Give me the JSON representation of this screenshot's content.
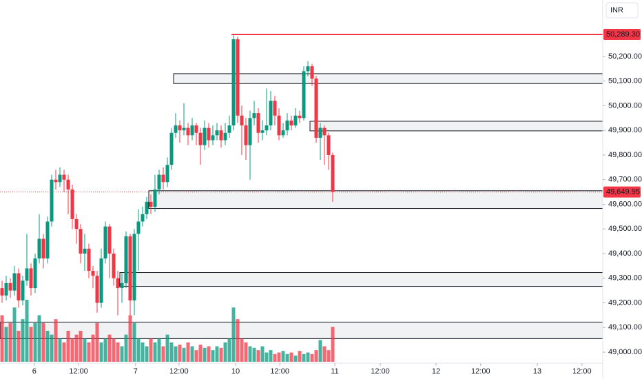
{
  "chart_data": {
    "type": "candlestick",
    "currency": "INR",
    "up_color": "#089981",
    "down_color": "#f23645",
    "ylim": [
      48947,
      50429
    ],
    "yticks": [
      {
        "value": 49000,
        "label": "49,000.00"
      },
      {
        "value": 49100,
        "label": "49,100.00"
      },
      {
        "value": 49200,
        "label": "49,200.00"
      },
      {
        "value": 49300,
        "label": "49,300.00"
      },
      {
        "value": 49400,
        "label": "49,400.00"
      },
      {
        "value": 49500,
        "label": "49,500.00"
      },
      {
        "value": 49600,
        "label": "49,600.00"
      },
      {
        "value": 49700,
        "label": "49,700.00"
      },
      {
        "value": 49800,
        "label": "49,800.00"
      },
      {
        "value": 49900,
        "label": "49,900.00"
      },
      {
        "value": 50000,
        "label": "50,000.00"
      },
      {
        "value": 50100,
        "label": "50,100.00"
      },
      {
        "value": 50200,
        "label": "50,200.00"
      }
    ],
    "xticks": [
      {
        "value": 7.8,
        "label": "6"
      },
      {
        "value": 18.5,
        "label": "12:00"
      },
      {
        "value": 32.3,
        "label": "7"
      },
      {
        "value": 42.8,
        "label": "12:00"
      },
      {
        "value": 56.5,
        "label": "10"
      },
      {
        "value": 67.2,
        "label": "12:00"
      },
      {
        "value": 80.5,
        "label": "11"
      },
      {
        "value": 91.5,
        "label": "12:00"
      },
      {
        "value": 105,
        "label": "12"
      },
      {
        "value": 115.8,
        "label": "12:00"
      },
      {
        "value": 129.5,
        "label": "13"
      },
      {
        "value": 140.3,
        "label": "12:00"
      }
    ],
    "open": [
      49260,
      49230,
      49280,
      49250,
      49320,
      49210,
      49290,
      49340,
      49260,
      49380,
      49460,
      49380,
      49530,
      49700,
      49690,
      49720,
      49700,
      49660,
      49540,
      49500,
      49400,
      49420,
      49330,
      49310,
      49200,
      49380,
      49510,
      49400,
      49300,
      49260,
      49280,
      49470,
      49210,
      49480,
      49530,
      49560,
      49610,
      49590,
      49660,
      49720,
      49690,
      49760,
      49890,
      49920,
      49900,
      49910,
      49880,
      49920,
      49890,
      49840,
      49910,
      49860,
      49880,
      49900,
      49860,
      49890,
      49920,
      50270,
      49960,
      49920,
      49840,
      49950,
      49970,
      49890,
      49900,
      49920,
      50020,
      49960,
      49880,
      49900,
      49940,
      49920,
      49960,
      49950,
      50140,
      50160,
      50110,
      49870,
      49910,
      49880,
      49800
    ],
    "high": [
      49290,
      49310,
      49300,
      49350,
      49340,
      49310,
      49480,
      49360,
      49400,
      49560,
      49480,
      49550,
      49720,
      49740,
      49750,
      49740,
      49720,
      49680,
      49560,
      49520,
      49480,
      49440,
      49350,
      49330,
      49420,
      49530,
      49520,
      49420,
      49330,
      49320,
      49490,
      49480,
      49500,
      49580,
      49590,
      49630,
      49640,
      49720,
      49740,
      49750,
      49790,
      49910,
      49970,
      49940,
      50010,
      49930,
      49950,
      49930,
      49910,
      49940,
      49930,
      49920,
      49930,
      49920,
      49930,
      49960,
      50289.3,
      50280,
      50000,
      49950,
      49980,
      50020,
      49990,
      49940,
      50070,
      50060,
      50040,
      49990,
      49930,
      49970,
      49960,
      49990,
      49980,
      50160,
      50180,
      50170,
      50120,
      49930,
      49920,
      49890,
      49810
    ],
    "low": [
      49200,
      49210,
      49220,
      49230,
      49180,
      49190,
      49270,
      49230,
      49240,
      49360,
      49340,
      49360,
      49510,
      49660,
      49670,
      49650,
      49560,
      49500,
      49440,
      49360,
      49330,
      49300,
      49260,
      49160,
      49180,
      49360,
      49300,
      49270,
      49150,
      49200,
      49260,
      49150,
      49150,
      49330,
      49510,
      49540,
      49560,
      49570,
      49640,
      49660,
      49670,
      49740,
      49870,
      49850,
      49880,
      49840,
      49860,
      49840,
      49760,
      49820,
      49830,
      49840,
      49860,
      49830,
      49840,
      49870,
      49900,
      49930,
      49800,
      49780,
      49700,
      49920,
      49850,
      49860,
      49880,
      49900,
      49920,
      49860,
      49870,
      49880,
      49900,
      49910,
      49930,
      49940,
      50120,
      50080,
      49850,
      49780,
      49760,
      49740,
      49610
    ],
    "close": [
      49230,
      49280,
      49250,
      49320,
      49210,
      49290,
      49340,
      49260,
      49380,
      49460,
      49380,
      49530,
      49700,
      49690,
      49720,
      49700,
      49660,
      49540,
      49500,
      49400,
      49420,
      49330,
      49310,
      49200,
      49380,
      49510,
      49400,
      49300,
      49260,
      49280,
      49470,
      49210,
      49480,
      49530,
      49560,
      49610,
      49590,
      49660,
      49720,
      49690,
      49760,
      49890,
      49920,
      49900,
      49910,
      49880,
      49920,
      49890,
      49840,
      49910,
      49860,
      49880,
      49900,
      49860,
      49890,
      49920,
      50270,
      49960,
      49920,
      49840,
      49950,
      49970,
      49890,
      49900,
      49920,
      50020,
      49960,
      49880,
      49900,
      49940,
      49920,
      49960,
      49950,
      50140,
      50160,
      50110,
      49870,
      49910,
      49880,
      49800,
      49649.95
    ],
    "volume": [
      60,
      45,
      50,
      70,
      40,
      55,
      80,
      45,
      50,
      60,
      50,
      40,
      35,
      55,
      30,
      25,
      40,
      30,
      35,
      40,
      30,
      25,
      35,
      50,
      25,
      30,
      35,
      30,
      25,
      20,
      35,
      60,
      50,
      30,
      25,
      20,
      30,
      25,
      30,
      20,
      35,
      25,
      20,
      22,
      18,
      25,
      20,
      15,
      22,
      18,
      20,
      15,
      20,
      18,
      25,
      30,
      70,
      55,
      30,
      25,
      20,
      18,
      15,
      20,
      12,
      15,
      10,
      12,
      14,
      10,
      12,
      8,
      14,
      10,
      12,
      10,
      15,
      28,
      20,
      15,
      45
    ],
    "zones": [
      {
        "start": 42,
        "top": 50130,
        "bottom": 50090
      },
      {
        "start": 75,
        "top": 49937,
        "bottom": 49898
      },
      {
        "start": 36,
        "top": 49655,
        "bottom": 49583
      },
      {
        "start": 29,
        "top": 49323,
        "bottom": 49267
      },
      {
        "start": 0,
        "top": 49122,
        "bottom": 49055
      }
    ],
    "high_line": {
      "value": 50289.3,
      "label": "50,289.30",
      "start": 56
    },
    "last_price": {
      "value": 49649.95,
      "label": "49,649.95"
    }
  }
}
